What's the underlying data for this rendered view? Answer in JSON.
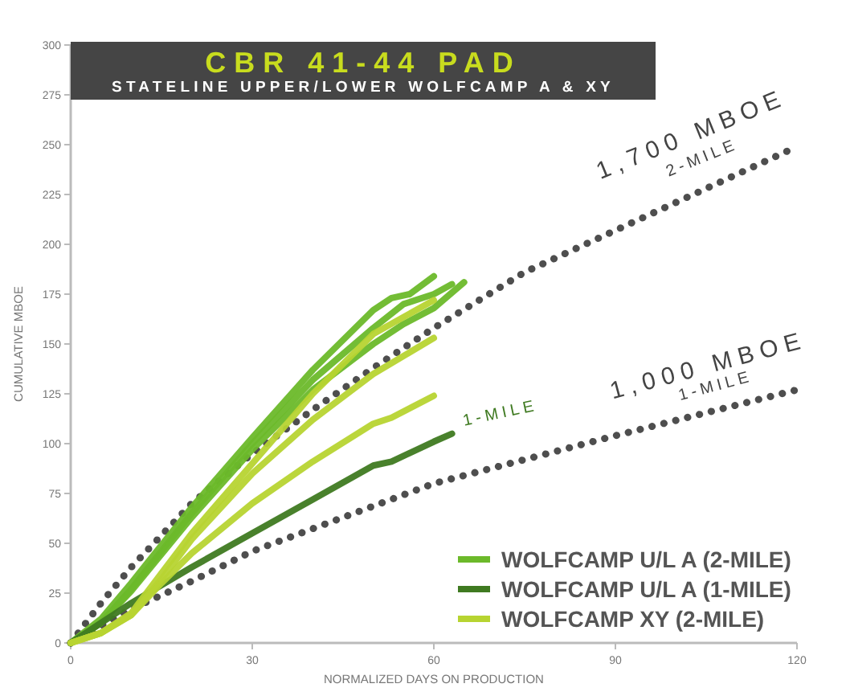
{
  "chart_data": {
    "type": "line",
    "title": "CBR 41-44 PAD",
    "subtitle": "STATELINE UPPER/LOWER WOLFCAMP A & XY",
    "xlabel": "NORMALIZED DAYS ON PRODUCTION",
    "ylabel": "CUMULATIVE MBOE",
    "xlim": [
      0,
      120
    ],
    "xticks": [
      0,
      30,
      60,
      90,
      120
    ],
    "ylim": [
      0,
      300
    ],
    "yticks": [
      0,
      25,
      50,
      75,
      100,
      125,
      150,
      175,
      200,
      225,
      250,
      275,
      300
    ],
    "grid": false,
    "legend": "bottom right",
    "marker": "none",
    "series": [
      {
        "color": "#444444",
        "line_style": "dotted",
        "x": [
          0,
          5,
          10,
          15,
          20,
          30,
          40,
          50,
          60,
          75,
          90,
          105,
          120
        ],
        "values": [
          0,
          20,
          38,
          54,
          70,
          95,
          117,
          138,
          158,
          186,
          207,
          228,
          249
        ]
      },
      {
        "color": "#444444",
        "line_style": "dotted",
        "x": [
          0,
          10,
          20,
          30,
          45,
          60,
          90,
          120
        ],
        "values": [
          0,
          17,
          31,
          46,
          63,
          80,
          104,
          127
        ]
      },
      {
        "name": "WOLFCAMP U/L A (2-MILE)",
        "color": "#6cb92a",
        "line_style": "solid",
        "x": [
          0,
          5,
          10,
          20,
          30,
          40,
          50,
          53,
          56,
          60
        ],
        "values": [
          0,
          12,
          30,
          68,
          103,
          137,
          167,
          173,
          175,
          184
        ]
      },
      {
        "color": "#6cb92a",
        "line_style": "solid",
        "x": [
          0,
          5,
          10,
          20,
          30,
          40,
          50,
          55,
          60,
          63
        ],
        "values": [
          0,
          10,
          27,
          65,
          100,
          132,
          158,
          170,
          175,
          180
        ]
      },
      {
        "color": "#6cb92a",
        "line_style": "solid",
        "x": [
          0,
          5,
          10,
          20,
          30,
          40,
          50,
          55,
          60,
          65
        ],
        "values": [
          0,
          10,
          26,
          63,
          97,
          127,
          150,
          160,
          168,
          181
        ]
      },
      {
        "name": "WOLFCAMP U/L A (1-MILE)",
        "color": "#3f7a21",
        "line_style": "solid",
        "x": [
          0,
          5,
          10,
          20,
          30,
          40,
          50,
          53,
          60,
          63
        ],
        "values": [
          0,
          10,
          20,
          38,
          55,
          72,
          89,
          91,
          101,
          105
        ]
      },
      {
        "name": "WOLFCAMP XY (2-MILE)",
        "color": "#b7d431",
        "line_style": "solid",
        "x": [
          0,
          5,
          10,
          15,
          20,
          30,
          40,
          50,
          60
        ],
        "values": [
          0,
          5,
          15,
          35,
          55,
          90,
          125,
          155,
          172
        ]
      },
      {
        "color": "#b7d431",
        "line_style": "solid",
        "x": [
          0,
          5,
          10,
          15,
          20,
          30,
          40,
          50,
          60
        ],
        "values": [
          0,
          5,
          14,
          32,
          52,
          85,
          112,
          135,
          153
        ]
      },
      {
        "color": "#b7d431",
        "line_style": "solid",
        "x": [
          0,
          5,
          10,
          15,
          20,
          30,
          40,
          50,
          53,
          60
        ],
        "values": [
          0,
          5,
          14,
          30,
          45,
          70,
          91,
          110,
          113,
          124
        ]
      }
    ],
    "annotations": [
      "1,700 MBOE",
      "2-MILE",
      "1,000 MBOE",
      "1-MILE",
      "1-MILE"
    ]
  }
}
